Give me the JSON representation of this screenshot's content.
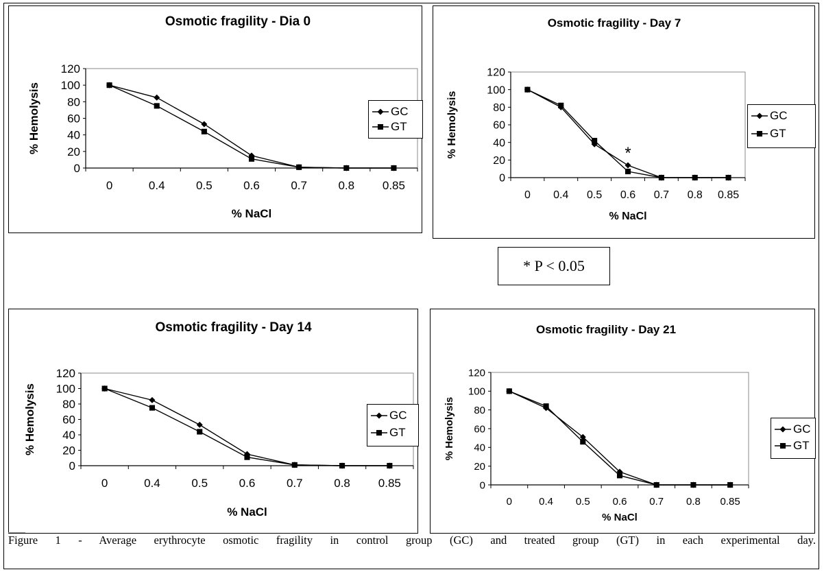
{
  "chart_data": [
    {
      "type": "line",
      "title": "Osmotic fragility - Dia 0",
      "xlabel": "% NaCl",
      "ylabel": "% Hemolysis",
      "categories": [
        "0",
        "0.4",
        "0.5",
        "0.6",
        "0.7",
        "0.8",
        "0.85"
      ],
      "ylim": [
        0,
        120
      ],
      "yticks": [
        "0",
        "20",
        "40",
        "60",
        "80",
        "100",
        "120"
      ],
      "series": [
        {
          "name": "GC",
          "marker": "diamond",
          "values": [
            100,
            85,
            53,
            15,
            1,
            0,
            0
          ]
        },
        {
          "name": "GT",
          "marker": "square",
          "values": [
            100,
            75,
            44,
            11,
            1,
            0,
            0
          ]
        }
      ],
      "annotations": []
    },
    {
      "type": "line",
      "title": "Osmotic fragility - Day 7",
      "xlabel": "% NaCl",
      "ylabel": "% Hemolysis",
      "categories": [
        "0",
        "0.4",
        "0.5",
        "0.6",
        "0.7",
        "0.8",
        "0.85"
      ],
      "ylim": [
        0,
        120
      ],
      "yticks": [
        "0",
        "20",
        "40",
        "60",
        "80",
        "100",
        "120"
      ],
      "series": [
        {
          "name": "GC",
          "marker": "diamond",
          "values": [
            100,
            80,
            38,
            14,
            0,
            0,
            0
          ]
        },
        {
          "name": "GT",
          "marker": "square",
          "values": [
            100,
            82,
            42,
            7,
            0,
            0,
            0
          ]
        }
      ],
      "annotations": [
        {
          "text": "*",
          "category": "0.6",
          "value": 28
        }
      ]
    },
    {
      "type": "line",
      "title": "Osmotic fragility - Day 14",
      "xlabel": "% NaCl",
      "ylabel": "% Hemolysis",
      "categories": [
        "0",
        "0.4",
        "0.5",
        "0.6",
        "0.7",
        "0.8",
        "0.85"
      ],
      "ylim": [
        0,
        120
      ],
      "yticks": [
        "0",
        "20",
        "40",
        "60",
        "80",
        "100",
        "120"
      ],
      "series": [
        {
          "name": "GC",
          "marker": "diamond",
          "values": [
            100,
            85,
            53,
            15,
            1,
            0,
            0
          ]
        },
        {
          "name": "GT",
          "marker": "square",
          "values": [
            100,
            75,
            44,
            11,
            1,
            0,
            0
          ]
        }
      ],
      "annotations": []
    },
    {
      "type": "line",
      "title": "Osmotic fragility - Day 21",
      "xlabel": "% NaCl",
      "ylabel": "% Hemolysis",
      "categories": [
        "0",
        "0.4",
        "0.5",
        "0.6",
        "0.7",
        "0.8",
        "0.85"
      ],
      "ylim": [
        0,
        120
      ],
      "yticks": [
        "0",
        "20",
        "40",
        "60",
        "80",
        "100",
        "120"
      ],
      "series": [
        {
          "name": "GC",
          "marker": "diamond",
          "values": [
            100,
            82,
            51,
            14,
            0,
            0,
            0
          ]
        },
        {
          "name": "GT",
          "marker": "square",
          "values": [
            100,
            84,
            46,
            10,
            0,
            0,
            0
          ]
        }
      ],
      "annotations": []
    }
  ],
  "significance_note": "* P < 0.05",
  "caption": "Figure 1 - Average erythrocyte osmotic fragility in control group (GC) and treated group (GT) in each experimental day."
}
